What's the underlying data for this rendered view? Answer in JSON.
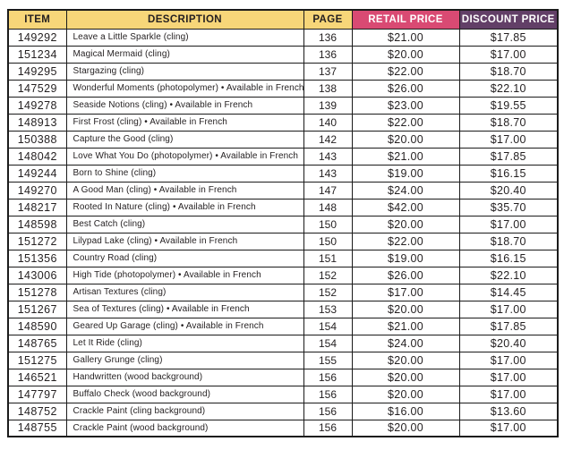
{
  "colors": {
    "header_yellow": "#F7D679",
    "header_pink": "#D94A73",
    "header_purple": "#623F67",
    "border": "#1B1B1B",
    "text": "#231F20"
  },
  "table": {
    "columns": [
      {
        "key": "item",
        "label": "ITEM"
      },
      {
        "key": "description",
        "label": "DESCRIPTION"
      },
      {
        "key": "page",
        "label": "PAGE"
      },
      {
        "key": "retail",
        "label": "RETAIL PRICE"
      },
      {
        "key": "discount",
        "label": "DISCOUNT PRICE"
      }
    ],
    "rows": [
      {
        "item": "149292",
        "description": "Leave a Little Sparkle (cling)",
        "page": "136",
        "retail": "$21.00",
        "discount": "$17.85"
      },
      {
        "item": "151234",
        "description": "Magical Mermaid (cling)",
        "page": "136",
        "retail": "$20.00",
        "discount": "$17.00"
      },
      {
        "item": "149295",
        "description": "Stargazing (cling)",
        "page": "137",
        "retail": "$22.00",
        "discount": "$18.70"
      },
      {
        "item": "147529",
        "description": "Wonderful Moments (photopolymer) • Available in French",
        "page": "138",
        "retail": "$26.00",
        "discount": "$22.10"
      },
      {
        "item": "149278",
        "description": "Seaside Notions (cling) • Available in French",
        "page": "139",
        "retail": "$23.00",
        "discount": "$19.55"
      },
      {
        "item": "148913",
        "description": "First Frost (cling) • Available in French",
        "page": "140",
        "retail": "$22.00",
        "discount": "$18.70"
      },
      {
        "item": "150388",
        "description": "Capture the Good (cling)",
        "page": "142",
        "retail": "$20.00",
        "discount": "$17.00"
      },
      {
        "item": "148042",
        "description": "Love What You Do (photopolymer) • Available in French",
        "page": "143",
        "retail": "$21.00",
        "discount": "$17.85"
      },
      {
        "item": "149244",
        "description": "Born to Shine (cling)",
        "page": "143",
        "retail": "$19.00",
        "discount": "$16.15"
      },
      {
        "item": "149270",
        "description": "A Good Man (cling) • Available in French",
        "page": "147",
        "retail": "$24.00",
        "discount": "$20.40"
      },
      {
        "item": "148217",
        "description": "Rooted In Nature (cling) • Available in French",
        "page": "148",
        "retail": "$42.00",
        "discount": "$35.70"
      },
      {
        "item": "148598",
        "description": "Best Catch (cling)",
        "page": "150",
        "retail": "$20.00",
        "discount": "$17.00"
      },
      {
        "item": "151272",
        "description": "Lilypad Lake (cling) • Available in French",
        "page": "150",
        "retail": "$22.00",
        "discount": "$18.70"
      },
      {
        "item": "151356",
        "description": "Country Road (cling)",
        "page": "151",
        "retail": "$19.00",
        "discount": "$16.15"
      },
      {
        "item": "143006",
        "description": "High Tide (photopolymer) • Available in French",
        "page": "152",
        "retail": "$26.00",
        "discount": "$22.10"
      },
      {
        "item": "151278",
        "description": "Artisan Textures (cling)",
        "page": "152",
        "retail": "$17.00",
        "discount": "$14.45"
      },
      {
        "item": "151267",
        "description": "Sea of Textures (cling) • Available in French",
        "page": "153",
        "retail": "$20.00",
        "discount": "$17.00"
      },
      {
        "item": "148590",
        "description": "Geared Up Garage (cling) • Available in French",
        "page": "154",
        "retail": "$21.00",
        "discount": "$17.85"
      },
      {
        "item": "148765",
        "description": "Let It Ride (cling)",
        "page": "154",
        "retail": "$24.00",
        "discount": "$20.40"
      },
      {
        "item": "151275",
        "description": "Gallery Grunge (cling)",
        "page": "155",
        "retail": "$20.00",
        "discount": "$17.00"
      },
      {
        "item": "146521",
        "description": "Handwritten (wood background)",
        "page": "156",
        "retail": "$20.00",
        "discount": "$17.00"
      },
      {
        "item": "147797",
        "description": "Buffalo Check (wood background)",
        "page": "156",
        "retail": "$20.00",
        "discount": "$17.00"
      },
      {
        "item": "148752",
        "description": "Crackle Paint (cling background)",
        "page": "156",
        "retail": "$16.00",
        "discount": "$13.60"
      },
      {
        "item": "148755",
        "description": "Crackle Paint (wood background)",
        "page": "156",
        "retail": "$20.00",
        "discount": "$17.00"
      }
    ]
  }
}
